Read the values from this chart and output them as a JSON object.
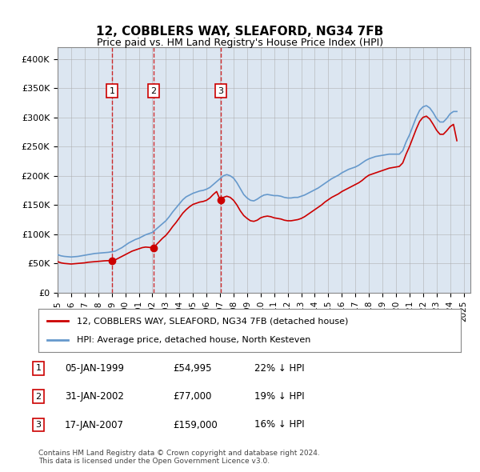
{
  "title": "12, COBBLERS WAY, SLEAFORD, NG34 7FB",
  "subtitle": "Price paid vs. HM Land Registry's House Price Index (HPI)",
  "background_color": "#dce6f1",
  "plot_bg_color": "#dce6f1",
  "ylabel_ticks": [
    "£0",
    "£50K",
    "£100K",
    "£150K",
    "£200K",
    "£250K",
    "£300K",
    "£350K",
    "£400K"
  ],
  "ytick_values": [
    0,
    50000,
    100000,
    150000,
    200000,
    250000,
    300000,
    350000,
    400000
  ],
  "ylim": [
    0,
    420000
  ],
  "xlim_start": 1995.0,
  "xlim_end": 2025.5,
  "xticks": [
    1995,
    1996,
    1997,
    1998,
    1999,
    2000,
    2001,
    2002,
    2003,
    2004,
    2005,
    2006,
    2007,
    2008,
    2009,
    2010,
    2011,
    2012,
    2013,
    2014,
    2015,
    2016,
    2017,
    2018,
    2019,
    2020,
    2021,
    2022,
    2023,
    2024,
    2025
  ],
  "red_line_color": "#cc0000",
  "blue_line_color": "#6699cc",
  "grid_color": "#aaaaaa",
  "sale_points": [
    {
      "date_num": 1999.02,
      "price": 54995,
      "label": "1"
    },
    {
      "date_num": 2002.08,
      "price": 77000,
      "label": "2"
    },
    {
      "date_num": 2007.05,
      "price": 159000,
      "label": "3"
    }
  ],
  "legend_entries": [
    "12, COBBLERS WAY, SLEAFORD, NG34 7FB (detached house)",
    "HPI: Average price, detached house, North Kesteven"
  ],
  "table_rows": [
    {
      "num": "1",
      "date": "05-JAN-1999",
      "price": "£54,995",
      "change": "22% ↓ HPI"
    },
    {
      "num": "2",
      "date": "31-JAN-2002",
      "price": "£77,000",
      "change": "19% ↓ HPI"
    },
    {
      "num": "3",
      "date": "17-JAN-2007",
      "price": "£159,000",
      "change": "16% ↓ HPI"
    }
  ],
  "footer": "Contains HM Land Registry data © Crown copyright and database right 2024.\nThis data is licensed under the Open Government Licence v3.0.",
  "hpi_data": {
    "years": [
      1995.0,
      1995.25,
      1995.5,
      1995.75,
      1996.0,
      1996.25,
      1996.5,
      1996.75,
      1997.0,
      1997.25,
      1997.5,
      1997.75,
      1998.0,
      1998.25,
      1998.5,
      1998.75,
      1999.0,
      1999.25,
      1999.5,
      1999.75,
      2000.0,
      2000.25,
      2000.5,
      2000.75,
      2001.0,
      2001.25,
      2001.5,
      2001.75,
      2002.0,
      2002.25,
      2002.5,
      2002.75,
      2003.0,
      2003.25,
      2003.5,
      2003.75,
      2004.0,
      2004.25,
      2004.5,
      2004.75,
      2005.0,
      2005.25,
      2005.5,
      2005.75,
      2006.0,
      2006.25,
      2006.5,
      2006.75,
      2007.0,
      2007.25,
      2007.5,
      2007.75,
      2008.0,
      2008.25,
      2008.5,
      2008.75,
      2009.0,
      2009.25,
      2009.5,
      2009.75,
      2010.0,
      2010.25,
      2010.5,
      2010.75,
      2011.0,
      2011.25,
      2011.5,
      2011.75,
      2012.0,
      2012.25,
      2012.5,
      2012.75,
      2013.0,
      2013.25,
      2013.5,
      2013.75,
      2014.0,
      2014.25,
      2014.5,
      2014.75,
      2015.0,
      2015.25,
      2015.5,
      2015.75,
      2016.0,
      2016.25,
      2016.5,
      2016.75,
      2017.0,
      2017.25,
      2017.5,
      2017.75,
      2018.0,
      2018.25,
      2018.5,
      2018.75,
      2019.0,
      2019.25,
      2019.5,
      2019.75,
      2020.0,
      2020.25,
      2020.5,
      2020.75,
      2021.0,
      2021.25,
      2021.5,
      2021.75,
      2022.0,
      2022.25,
      2022.5,
      2022.75,
      2023.0,
      2023.25,
      2023.5,
      2023.75,
      2024.0,
      2024.25,
      2024.5
    ],
    "values": [
      65000,
      63000,
      62000,
      61500,
      61000,
      61500,
      62000,
      63000,
      64000,
      65000,
      66000,
      67000,
      67500,
      68000,
      68500,
      69000,
      70000,
      71000,
      74000,
      77000,
      81000,
      85000,
      88000,
      91000,
      93000,
      96000,
      99000,
      101000,
      103000,
      108000,
      113000,
      118000,
      123000,
      130000,
      138000,
      145000,
      152000,
      159000,
      164000,
      167000,
      170000,
      172000,
      174000,
      175000,
      177000,
      180000,
      185000,
      190000,
      195000,
      200000,
      202000,
      200000,
      196000,
      188000,
      178000,
      168000,
      162000,
      158000,
      157000,
      160000,
      164000,
      167000,
      168000,
      167000,
      166000,
      166000,
      165000,
      163000,
      162000,
      162000,
      163000,
      163000,
      165000,
      167000,
      170000,
      173000,
      176000,
      179000,
      183000,
      187000,
      191000,
      195000,
      198000,
      201000,
      205000,
      208000,
      211000,
      213000,
      215000,
      218000,
      222000,
      226000,
      229000,
      231000,
      233000,
      234000,
      235000,
      236000,
      237000,
      237000,
      237000,
      237000,
      243000,
      258000,
      270000,
      285000,
      300000,
      312000,
      318000,
      320000,
      316000,
      308000,
      298000,
      292000,
      292000,
      298000,
      306000,
      310000,
      310000
    ]
  },
  "red_line_data": {
    "years": [
      1995.0,
      1995.25,
      1995.5,
      1995.75,
      1996.0,
      1996.25,
      1996.5,
      1996.75,
      1997.0,
      1997.25,
      1997.5,
      1997.75,
      1998.0,
      1998.25,
      1998.5,
      1998.75,
      1999.0,
      1999.25,
      1999.5,
      1999.75,
      2000.0,
      2000.25,
      2000.5,
      2000.75,
      2001.0,
      2001.25,
      2001.5,
      2001.75,
      2002.0,
      2002.25,
      2002.5,
      2002.75,
      2003.0,
      2003.25,
      2003.5,
      2003.75,
      2004.0,
      2004.25,
      2004.5,
      2004.75,
      2005.0,
      2005.25,
      2005.5,
      2005.75,
      2006.0,
      2006.25,
      2006.5,
      2006.75,
      2007.0,
      2007.25,
      2007.5,
      2007.75,
      2008.0,
      2008.25,
      2008.5,
      2008.75,
      2009.0,
      2009.25,
      2009.5,
      2009.75,
      2010.0,
      2010.25,
      2010.5,
      2010.75,
      2011.0,
      2011.25,
      2011.5,
      2011.75,
      2012.0,
      2012.25,
      2012.5,
      2012.75,
      2013.0,
      2013.25,
      2013.5,
      2013.75,
      2014.0,
      2014.25,
      2014.5,
      2014.75,
      2015.0,
      2015.25,
      2015.5,
      2015.75,
      2016.0,
      2016.25,
      2016.5,
      2016.75,
      2017.0,
      2017.25,
      2017.5,
      2017.75,
      2018.0,
      2018.25,
      2018.5,
      2018.75,
      2019.0,
      2019.25,
      2019.5,
      2019.75,
      2020.0,
      2020.25,
      2020.5,
      2020.75,
      2021.0,
      2021.25,
      2021.5,
      2021.75,
      2022.0,
      2022.25,
      2022.5,
      2022.75,
      2023.0,
      2023.25,
      2023.5,
      2023.75,
      2024.0,
      2024.25,
      2024.5
    ],
    "values": [
      53000,
      51000,
      50000,
      49500,
      49000,
      49500,
      50000,
      50500,
      51000,
      52000,
      52500,
      53000,
      53500,
      54000,
      54500,
      54800,
      54995,
      56000,
      59000,
      62000,
      65000,
      68000,
      71000,
      73000,
      75000,
      77000,
      78000,
      77500,
      77000,
      81000,
      87000,
      93000,
      98000,
      105000,
      113000,
      120000,
      128000,
      136000,
      142000,
      147000,
      151000,
      153000,
      155000,
      156000,
      158000,
      162000,
      168000,
      173000,
      159000,
      163000,
      165000,
      163000,
      158000,
      150000,
      140000,
      132000,
      127000,
      123000,
      122000,
      124000,
      128000,
      130000,
      131000,
      130000,
      128000,
      127000,
      126000,
      124000,
      123000,
      123000,
      124000,
      125000,
      127000,
      130000,
      134000,
      138000,
      142000,
      146000,
      150000,
      155000,
      159000,
      163000,
      166000,
      169000,
      173000,
      176000,
      179000,
      182000,
      185000,
      188000,
      192000,
      197000,
      201000,
      203000,
      205000,
      207000,
      209000,
      211000,
      213000,
      214000,
      215000,
      216000,
      222000,
      237000,
      250000,
      265000,
      280000,
      293000,
      300000,
      302000,
      297000,
      288000,
      278000,
      271000,
      271000,
      277000,
      284000,
      288000,
      260000
    ]
  }
}
